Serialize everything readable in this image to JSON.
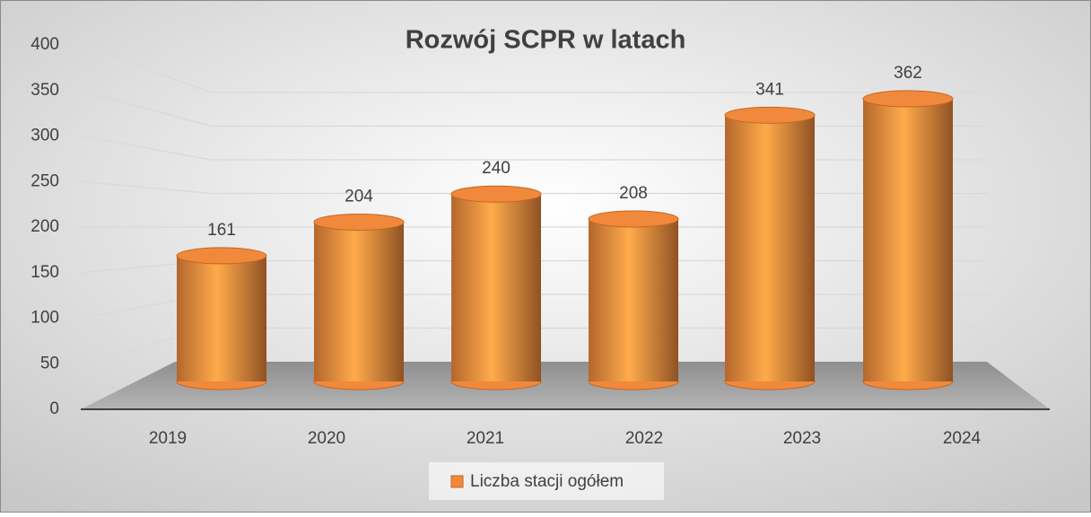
{
  "chart_data": {
    "type": "bar3d",
    "title": "Rozwój SCPR w latach",
    "categories": [
      "2019",
      "2020",
      "2021",
      "2022",
      "2023",
      "2024"
    ],
    "series": [
      {
        "name": "Liczba stacji ogółem",
        "color": "#f0893c",
        "values": [
          161,
          204,
          240,
          208,
          341,
          362
        ]
      }
    ],
    "ylim": [
      0,
      400
    ],
    "yticks": [
      0,
      50,
      100,
      150,
      200,
      250,
      300,
      350,
      400
    ],
    "grid": true,
    "legend": "bottom"
  }
}
